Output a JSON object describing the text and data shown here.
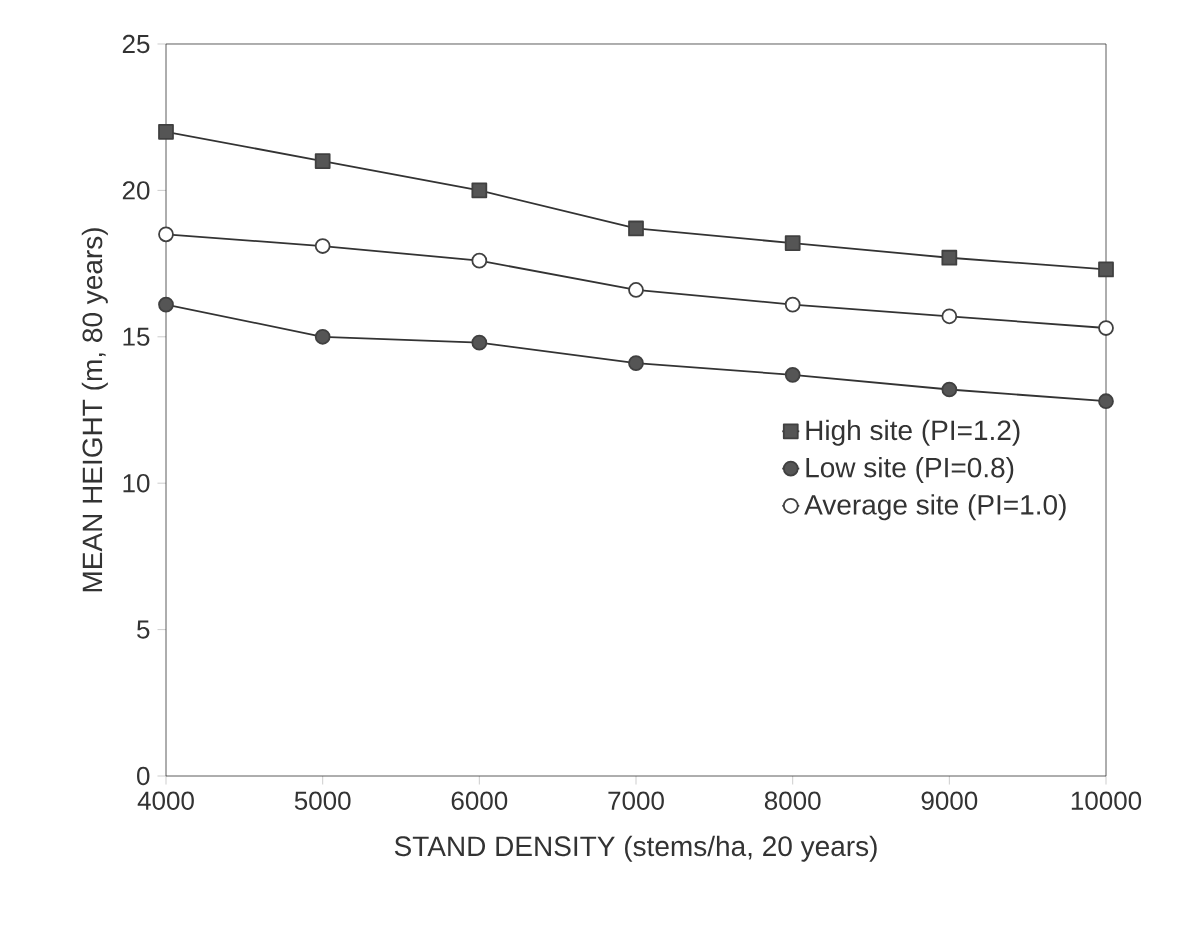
{
  "chart_data": {
    "type": "line",
    "xlabel": "STAND DENSITY (stems/ha, 20 years)",
    "ylabel": "MEAN HEIGHT (m, 80 years)",
    "x": [
      4000,
      5000,
      6000,
      7000,
      8000,
      9000,
      10000
    ],
    "series": [
      {
        "name": "High site (PI=1.2)",
        "color": "#555555",
        "marker": "square",
        "values": [
          22.0,
          21.0,
          20.0,
          18.7,
          18.2,
          17.7,
          17.3
        ]
      },
      {
        "name": "Low site (PI=0.8)",
        "color": "#555555",
        "marker": "circle",
        "values": [
          16.1,
          15.0,
          14.8,
          14.1,
          13.7,
          13.2,
          12.8
        ]
      },
      {
        "name": "Average site (PI=1.0)",
        "color": "#ffffff",
        "marker": "circle",
        "values": [
          18.5,
          18.1,
          17.6,
          16.6,
          16.1,
          15.7,
          15.3
        ]
      }
    ],
    "xlim": [
      4000,
      10000
    ],
    "ylim": [
      0,
      25
    ],
    "xticks": [
      4000,
      5000,
      6000,
      7000,
      8000,
      9000,
      10000
    ],
    "yticks": [
      0,
      5,
      10,
      15,
      20,
      25
    ],
    "grid": false,
    "legend": "center right",
    "line_style": "solid"
  }
}
